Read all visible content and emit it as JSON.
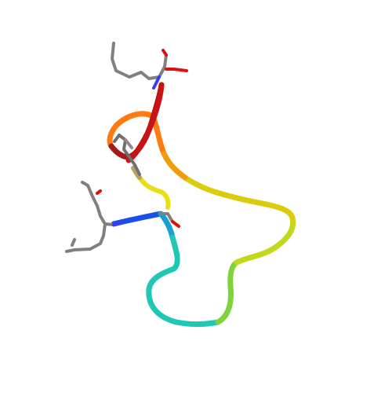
{
  "scene": {
    "background": "#ffffff",
    "ribbon_gradient": [
      "#0000ff",
      "#00c8c8",
      "#c8dc00",
      "#ff8000",
      "#c00000"
    ],
    "stick_colors": {
      "carbon": "#808080",
      "oxygen": "#e00000",
      "nitrogen": "#3030ff"
    }
  }
}
